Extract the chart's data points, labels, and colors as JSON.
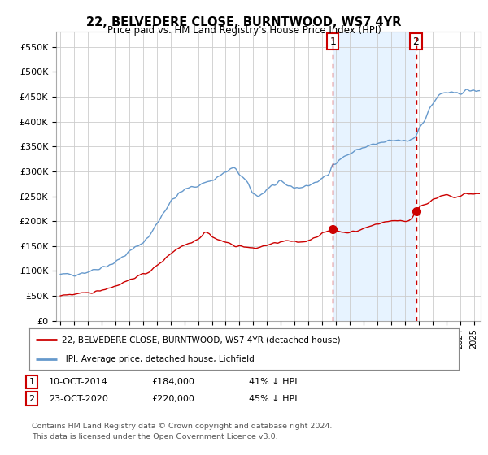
{
  "title": "22, BELVEDERE CLOSE, BURNTWOOD, WS7 4YR",
  "subtitle": "Price paid vs. HM Land Registry's House Price Index (HPI)",
  "ylabel_ticks": [
    "£0",
    "£50K",
    "£100K",
    "£150K",
    "£200K",
    "£250K",
    "£300K",
    "£350K",
    "£400K",
    "£450K",
    "£500K",
    "£550K"
  ],
  "ytick_values": [
    0,
    50000,
    100000,
    150000,
    200000,
    250000,
    300000,
    350000,
    400000,
    450000,
    500000,
    550000
  ],
  "ylim": [
    0,
    580000
  ],
  "xlim_start": 1994.7,
  "xlim_end": 2025.5,
  "sale1_date": 2014.78,
  "sale1_price": 184000,
  "sale1_label": "1",
  "sale2_date": 2020.81,
  "sale2_price": 220000,
  "sale2_label": "2",
  "legend_line1": "22, BELVEDERE CLOSE, BURNTWOOD, WS7 4YR (detached house)",
  "legend_line2": "HPI: Average price, detached house, Lichfield",
  "footer1": "Contains HM Land Registry data © Crown copyright and database right 2024.",
  "footer2": "This data is licensed under the Open Government Licence v3.0.",
  "red_color": "#cc0000",
  "blue_color": "#6699cc",
  "shade_color": "#ddeeff",
  "bg_color": "#ffffff",
  "grid_color": "#cccccc",
  "blue_anchors": [
    [
      1995.0,
      92000
    ],
    [
      1995.5,
      93000
    ],
    [
      1996.0,
      94000
    ],
    [
      1996.5,
      96000
    ],
    [
      1997.0,
      99000
    ],
    [
      1997.5,
      103000
    ],
    [
      1998.0,
      108000
    ],
    [
      1998.5,
      112000
    ],
    [
      1999.0,
      118000
    ],
    [
      1999.5,
      128000
    ],
    [
      2000.0,
      138000
    ],
    [
      2000.5,
      148000
    ],
    [
      2001.0,
      158000
    ],
    [
      2001.5,
      172000
    ],
    [
      2002.0,
      195000
    ],
    [
      2002.5,
      218000
    ],
    [
      2003.0,
      238000
    ],
    [
      2003.5,
      252000
    ],
    [
      2004.0,
      262000
    ],
    [
      2004.5,
      268000
    ],
    [
      2005.0,
      272000
    ],
    [
      2005.5,
      278000
    ],
    [
      2006.0,
      282000
    ],
    [
      2006.5,
      290000
    ],
    [
      2007.0,
      298000
    ],
    [
      2007.5,
      305000
    ],
    [
      2007.8,
      302000
    ],
    [
      2008.0,
      295000
    ],
    [
      2008.5,
      278000
    ],
    [
      2008.8,
      265000
    ],
    [
      2009.0,
      255000
    ],
    [
      2009.3,
      252000
    ],
    [
      2009.8,
      258000
    ],
    [
      2010.0,
      265000
    ],
    [
      2010.5,
      272000
    ],
    [
      2011.0,
      276000
    ],
    [
      2011.5,
      272000
    ],
    [
      2012.0,
      268000
    ],
    [
      2012.5,
      268000
    ],
    [
      2013.0,
      272000
    ],
    [
      2013.5,
      278000
    ],
    [
      2014.0,
      285000
    ],
    [
      2014.5,
      295000
    ],
    [
      2014.78,
      315000
    ],
    [
      2015.0,
      320000
    ],
    [
      2015.5,
      328000
    ],
    [
      2016.0,
      335000
    ],
    [
      2016.5,
      342000
    ],
    [
      2017.0,
      348000
    ],
    [
      2017.5,
      352000
    ],
    [
      2018.0,
      355000
    ],
    [
      2018.5,
      358000
    ],
    [
      2019.0,
      360000
    ],
    [
      2019.5,
      362000
    ],
    [
      2020.0,
      360000
    ],
    [
      2020.5,
      365000
    ],
    [
      2020.81,
      372000
    ],
    [
      2021.0,
      385000
    ],
    [
      2021.5,
      408000
    ],
    [
      2022.0,
      435000
    ],
    [
      2022.5,
      452000
    ],
    [
      2023.0,
      458000
    ],
    [
      2023.5,
      455000
    ],
    [
      2024.0,
      458000
    ],
    [
      2024.5,
      462000
    ],
    [
      2025.3,
      460000
    ]
  ],
  "red_anchors": [
    [
      1995.0,
      52000
    ],
    [
      1995.5,
      52500
    ],
    [
      1996.0,
      53000
    ],
    [
      1996.5,
      54000
    ],
    [
      1997.0,
      56000
    ],
    [
      1997.5,
      58000
    ],
    [
      1998.0,
      62000
    ],
    [
      1998.5,
      66000
    ],
    [
      1999.0,
      70000
    ],
    [
      1999.5,
      76000
    ],
    [
      2000.0,
      82000
    ],
    [
      2000.5,
      88000
    ],
    [
      2001.0,
      93000
    ],
    [
      2001.5,
      100000
    ],
    [
      2002.0,
      110000
    ],
    [
      2002.5,
      122000
    ],
    [
      2003.0,
      135000
    ],
    [
      2003.5,
      145000
    ],
    [
      2004.0,
      152000
    ],
    [
      2004.5,
      158000
    ],
    [
      2005.0,
      165000
    ],
    [
      2005.3,
      172000
    ],
    [
      2005.5,
      178000
    ],
    [
      2005.8,
      175000
    ],
    [
      2006.0,
      170000
    ],
    [
      2006.5,
      162000
    ],
    [
      2007.0,
      158000
    ],
    [
      2007.5,
      152000
    ],
    [
      2008.0,
      150000
    ],
    [
      2008.5,
      148000
    ],
    [
      2009.0,
      145000
    ],
    [
      2009.5,
      148000
    ],
    [
      2010.0,
      152000
    ],
    [
      2010.5,
      155000
    ],
    [
      2011.0,
      158000
    ],
    [
      2011.5,
      160000
    ],
    [
      2012.0,
      158000
    ],
    [
      2012.5,
      158000
    ],
    [
      2013.0,
      162000
    ],
    [
      2013.5,
      168000
    ],
    [
      2014.0,
      175000
    ],
    [
      2014.5,
      180000
    ],
    [
      2014.78,
      184000
    ],
    [
      2015.0,
      182000
    ],
    [
      2015.5,
      178000
    ],
    [
      2016.0,
      178000
    ],
    [
      2016.5,
      180000
    ],
    [
      2017.0,
      185000
    ],
    [
      2017.5,
      190000
    ],
    [
      2018.0,
      195000
    ],
    [
      2018.5,
      198000
    ],
    [
      2019.0,
      200000
    ],
    [
      2019.5,
      202000
    ],
    [
      2020.0,
      200000
    ],
    [
      2020.5,
      205000
    ],
    [
      2020.81,
      220000
    ],
    [
      2021.0,
      228000
    ],
    [
      2021.5,
      235000
    ],
    [
      2022.0,
      242000
    ],
    [
      2022.5,
      248000
    ],
    [
      2023.0,
      252000
    ],
    [
      2023.5,
      248000
    ],
    [
      2024.0,
      250000
    ],
    [
      2024.5,
      255000
    ],
    [
      2025.3,
      255000
    ]
  ]
}
